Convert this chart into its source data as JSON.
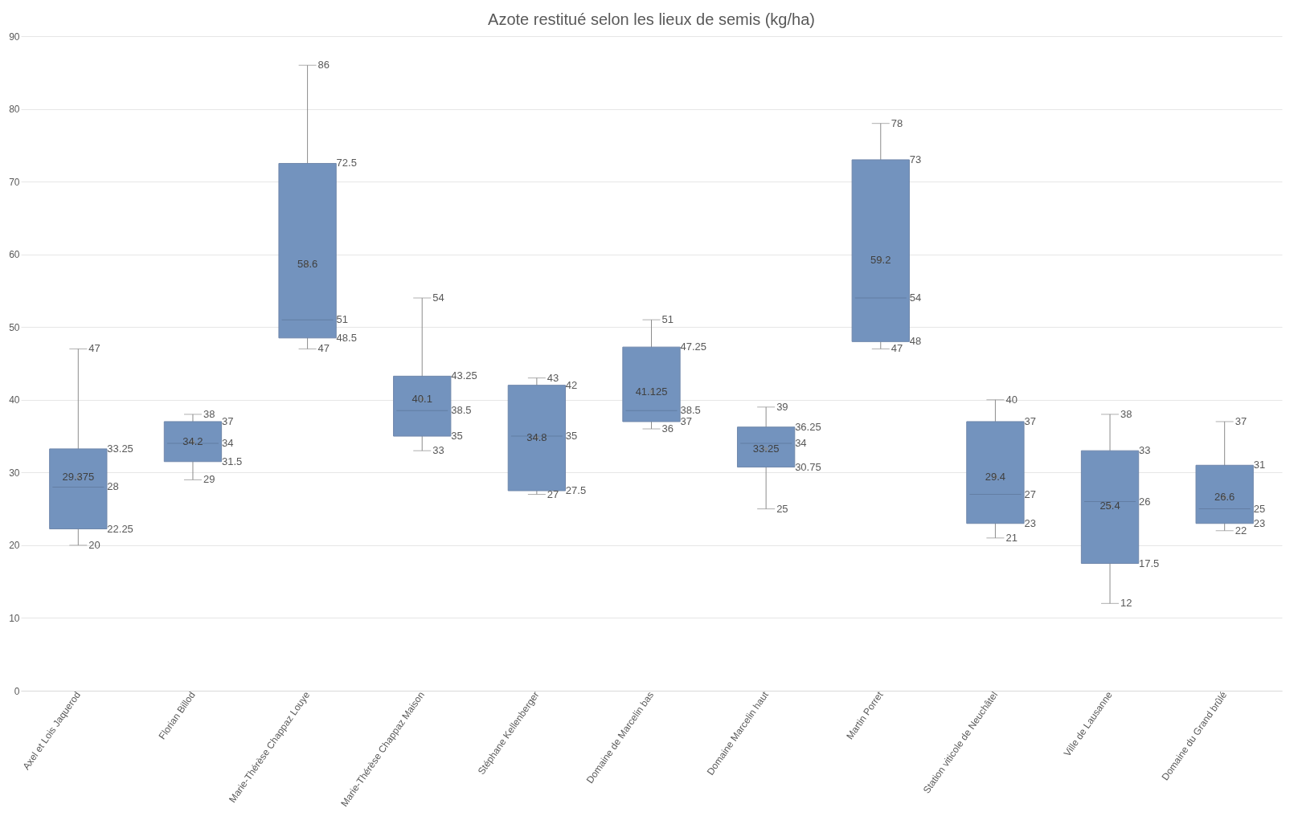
{
  "chart_data": {
    "type": "box",
    "title": "Azote restitué selon les lieux de semis (kg/ha)",
    "categories": [
      "Axel et Lois Jaquerod",
      "Florian Billod",
      "Marie-Thérèse Chappaz Louye",
      "Marie-Thérèse Chappaz Maison",
      "Stéphane Kellenberger",
      "Domaine de Marcelin bas",
      "Domaine Marcelin haut",
      "Martin Porret",
      "Station viticole de Neuchâtel",
      "Ville de Lausanne",
      "Domaine du Grand brûlé"
    ],
    "boxes": [
      {
        "low": 20,
        "q1": 22.25,
        "median": 28,
        "q3": 33.25,
        "high": 47,
        "mean": 29.375
      },
      {
        "low": 29,
        "q1": 31.5,
        "median": 34,
        "q3": 37,
        "high": 38,
        "mean": 34.2
      },
      {
        "low": 47,
        "q1": 48.5,
        "median": 51,
        "q3": 72.5,
        "high": 86,
        "mean": 58.6
      },
      {
        "low": 33,
        "q1": 35,
        "median": 38.5,
        "q3": 43.25,
        "high": 54,
        "mean": 40.1
      },
      {
        "low": 27,
        "q1": 27.5,
        "median": 35,
        "q3": 42,
        "high": 43,
        "mean": 34.8
      },
      {
        "low": 36,
        "q1": 37,
        "median": 38.5,
        "q3": 47.25,
        "high": 51,
        "mean": 41.125
      },
      {
        "low": 25,
        "q1": 30.75,
        "median": 34,
        "q3": 36.25,
        "high": 39,
        "mean": 33.25
      },
      {
        "low": 47,
        "q1": 48,
        "median": 54,
        "q3": 73,
        "high": 78,
        "mean": 59.2
      },
      {
        "low": 21,
        "q1": 23,
        "median": 27,
        "q3": 37,
        "high": 40,
        "mean": 29.4
      },
      {
        "low": 12,
        "q1": 17.5,
        "median": 26,
        "q3": 33,
        "high": 38,
        "mean": 25.4
      },
      {
        "low": 22,
        "q1": 23,
        "median": 25,
        "q3": 31,
        "high": 37,
        "mean": 26.6
      }
    ],
    "color": "#7393be",
    "ylim": [
      0,
      90
    ],
    "yticks": [
      0,
      10,
      20,
      30,
      40,
      50,
      60,
      70,
      80,
      90
    ],
    "grid": "y",
    "annotations": [
      {
        "text": "47",
        "x": "Axel et Lois Jaquerod",
        "y": 47
      },
      {
        "text": "33.25",
        "x": "Axel et Lois Jaquerod",
        "y": 33.25
      },
      {
        "text": "29.375",
        "x": "Axel et Lois Jaquerod",
        "y": 29.375
      },
      {
        "text": "28",
        "x": "Axel et Lois Jaquerod",
        "y": 28
      },
      {
        "text": "22.25",
        "x": "Axel et Lois Jaquerod",
        "y": 22.25
      },
      {
        "text": "20",
        "x": "Axel et Lois Jaquerod",
        "y": 20
      },
      {
        "text": "38",
        "x": "Florian Billod",
        "y": 38
      },
      {
        "text": "37",
        "x": "Florian Billod",
        "y": 37
      },
      {
        "text": "34.2",
        "x": "Florian Billod",
        "y": 34.2
      },
      {
        "text": "34",
        "x": "Florian Billod",
        "y": 34
      },
      {
        "text": "31.5",
        "x": "Florian Billod",
        "y": 31.5
      },
      {
        "text": "29",
        "x": "Florian Billod",
        "y": 29
      },
      {
        "text": "86",
        "x": "Marie-Thérèse Chappaz Louye",
        "y": 86
      },
      {
        "text": "72.5",
        "x": "Marie-Thérèse Chappaz Louye",
        "y": 72.5
      },
      {
        "text": "58.6",
        "x": "Marie-Thérèse Chappaz Louye",
        "y": 58.6
      },
      {
        "text": "51",
        "x": "Marie-Thérèse Chappaz Louye",
        "y": 51
      },
      {
        "text": "48.5",
        "x": "Marie-Thérèse Chappaz Louye",
        "y": 48.5
      },
      {
        "text": "47",
        "x": "Marie-Thérèse Chappaz Louye",
        "y": 47
      },
      {
        "text": "54",
        "x": "Marie-Thérèse Chappaz Maison",
        "y": 54
      },
      {
        "text": "43.25",
        "x": "Marie-Thérèse Chappaz Maison",
        "y": 43.25
      },
      {
        "text": "40.1",
        "x": "Marie-Thérèse Chappaz Maison",
        "y": 40.1
      },
      {
        "text": "38.5",
        "x": "Marie-Thérèse Chappaz Maison",
        "y": 38.5
      },
      {
        "text": "35",
        "x": "Marie-Thérèse Chappaz Maison",
        "y": 35
      },
      {
        "text": "33",
        "x": "Marie-Thérèse Chappaz Maison",
        "y": 33
      },
      {
        "text": "43",
        "x": "Stéphane Kellenberger",
        "y": 43
      },
      {
        "text": "42",
        "x": "Stéphane Kellenberger",
        "y": 42
      },
      {
        "text": "34.8",
        "x": "Stéphane Kellenberger",
        "y": 34.8
      },
      {
        "text": "35",
        "x": "Stéphane Kellenberger",
        "y": 35
      },
      {
        "text": "27.5",
        "x": "Stéphane Kellenberger",
        "y": 27.5
      },
      {
        "text": "27",
        "x": "Stéphane Kellenberger",
        "y": 27
      },
      {
        "text": "51",
        "x": "Domaine de Marcelin bas",
        "y": 51
      },
      {
        "text": "47.25",
        "x": "Domaine de Marcelin bas",
        "y": 47.25
      },
      {
        "text": "41.125",
        "x": "Domaine de Marcelin bas",
        "y": 41.125
      },
      {
        "text": "38.5",
        "x": "Domaine de Marcelin bas",
        "y": 38.5
      },
      {
        "text": "37",
        "x": "Domaine de Marcelin bas",
        "y": 37
      },
      {
        "text": "36",
        "x": "Domaine de Marcelin bas",
        "y": 36
      },
      {
        "text": "39",
        "x": "Domaine Marcelin haut",
        "y": 39
      },
      {
        "text": "36.25",
        "x": "Domaine Marcelin haut",
        "y": 36.25
      },
      {
        "text": "34",
        "x": "Domaine Marcelin haut",
        "y": 34
      },
      {
        "text": "33.25",
        "x": "Domaine Marcelin haut",
        "y": 33.25
      },
      {
        "text": "30.75",
        "x": "Domaine Marcelin haut",
        "y": 30.75
      },
      {
        "text": "25",
        "x": "Domaine Marcelin haut",
        "y": 25
      },
      {
        "text": "78",
        "x": "Martin Porret",
        "y": 78
      },
      {
        "text": "73",
        "x": "Martin Porret",
        "y": 73
      },
      {
        "text": "59.2",
        "x": "Martin Porret",
        "y": 59.2
      },
      {
        "text": "54",
        "x": "Martin Porret",
        "y": 54
      },
      {
        "text": "48",
        "x": "Martin Porret",
        "y": 48
      },
      {
        "text": "47",
        "x": "Martin Porret",
        "y": 47
      },
      {
        "text": "40",
        "x": "Station viticole de Neuchâtel",
        "y": 40
      },
      {
        "text": "37",
        "x": "Station viticole de Neuchâtel",
        "y": 37
      },
      {
        "text": "29.4",
        "x": "Station viticole de Neuchâtel",
        "y": 29.4
      },
      {
        "text": "27",
        "x": "Station viticole de Neuchâtel",
        "y": 27
      },
      {
        "text": "23",
        "x": "Station viticole de Neuchâtel",
        "y": 23
      },
      {
        "text": "21",
        "x": "Station viticole de Neuchâtel",
        "y": 21
      },
      {
        "text": "38",
        "x": "Ville de Lausanne",
        "y": 38
      },
      {
        "text": "33",
        "x": "Ville de Lausanne",
        "y": 33
      },
      {
        "text": "26",
        "x": "Ville de Lausanne",
        "y": 26
      },
      {
        "text": "25.4",
        "x": "Ville de Lausanne",
        "y": 25.4
      },
      {
        "text": "17.5",
        "x": "Ville de Lausanne",
        "y": 17.5
      },
      {
        "text": "12",
        "x": "Ville de Lausanne",
        "y": 12
      },
      {
        "text": "37",
        "x": "Domaine du Grand brûlé",
        "y": 37
      },
      {
        "text": "31",
        "x": "Domaine du Grand brûlé",
        "y": 31
      },
      {
        "text": "26.6",
        "x": "Domaine du Grand brûlé",
        "y": 26.6
      },
      {
        "text": "25",
        "x": "Domaine du Grand brûlé",
        "y": 25
      },
      {
        "text": "23",
        "x": "Domaine du Grand brûlé",
        "y": 23
      },
      {
        "text": "22",
        "x": "Domaine du Grand brûlé",
        "y": 22
      }
    ]
  }
}
